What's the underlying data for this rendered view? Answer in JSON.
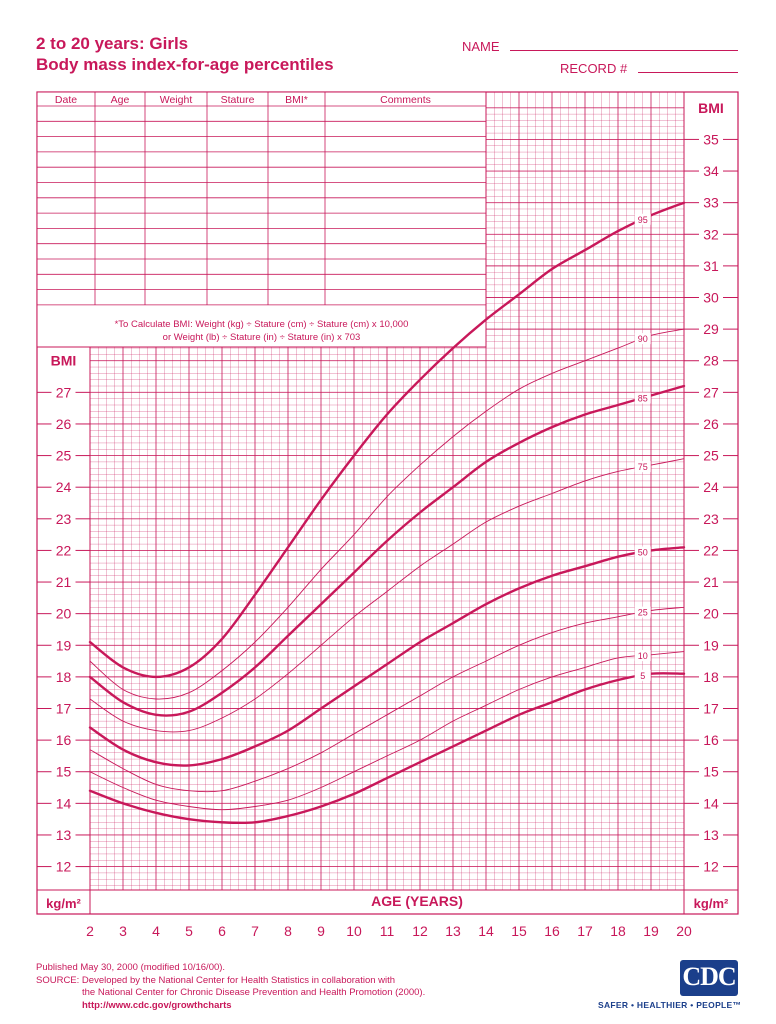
{
  "header": {
    "title_line1": "2 to 20 years: Girls",
    "title_line2": "Body mass index-for-age percentiles",
    "name_label": "NAME",
    "record_label": "RECORD #"
  },
  "table": {
    "columns": [
      "Date",
      "Age",
      "Weight",
      "Stature",
      "BMI*",
      "Comments"
    ],
    "formula_line1": "*To Calculate BMI: Weight (kg) ÷ Stature (cm) ÷ Stature (cm) x 10,000",
    "formula_line2": "or Weight (lb) ÷ Stature (in) ÷ Stature (in) x 703"
  },
  "chart_data": {
    "type": "line",
    "xlabel": "AGE (YEARS)",
    "ylabel_top": "BMI",
    "unit_label": "kg/m²",
    "x_ticks": [
      2,
      3,
      4,
      5,
      6,
      7,
      8,
      9,
      10,
      11,
      12,
      13,
      14,
      15,
      16,
      17,
      18,
      19,
      20
    ],
    "left_y_ticks": [
      12,
      13,
      14,
      15,
      16,
      17,
      18,
      19,
      20,
      21,
      22,
      23,
      24,
      25,
      26,
      27
    ],
    "right_y_ticks": [
      12,
      13,
      14,
      15,
      16,
      17,
      18,
      19,
      20,
      21,
      22,
      23,
      24,
      25,
      26,
      27,
      28,
      29,
      30,
      31,
      32,
      33,
      34,
      35
    ],
    "xlim": [
      2,
      20
    ],
    "ylim": [
      10.5,
      36.5
    ],
    "x": [
      2,
      3,
      4,
      5,
      6,
      7,
      8,
      9,
      10,
      11,
      12,
      13,
      14,
      15,
      16,
      17,
      18,
      19,
      20
    ],
    "series": [
      {
        "name": "95",
        "bold": true,
        "values": [
          19.1,
          18.3,
          18.0,
          18.3,
          19.2,
          20.6,
          22.1,
          23.6,
          25.0,
          26.3,
          27.4,
          28.4,
          29.3,
          30.1,
          30.9,
          31.5,
          32.1,
          32.6,
          33.0
        ]
      },
      {
        "name": "90",
        "bold": false,
        "values": [
          18.5,
          17.6,
          17.3,
          17.5,
          18.2,
          19.1,
          20.2,
          21.4,
          22.5,
          23.7,
          24.7,
          25.6,
          26.4,
          27.1,
          27.6,
          28.0,
          28.4,
          28.8,
          29.0
        ]
      },
      {
        "name": "85",
        "bold": true,
        "values": [
          18.0,
          17.2,
          16.8,
          16.9,
          17.5,
          18.3,
          19.3,
          20.3,
          21.3,
          22.3,
          23.2,
          24.0,
          24.8,
          25.4,
          25.9,
          26.3,
          26.6,
          26.9,
          27.2
        ]
      },
      {
        "name": "75",
        "bold": false,
        "values": [
          17.3,
          16.6,
          16.3,
          16.3,
          16.7,
          17.3,
          18.1,
          19.0,
          19.9,
          20.7,
          21.5,
          22.2,
          22.9,
          23.4,
          23.8,
          24.2,
          24.5,
          24.7,
          24.9
        ]
      },
      {
        "name": "50",
        "bold": true,
        "values": [
          16.4,
          15.7,
          15.3,
          15.2,
          15.4,
          15.8,
          16.3,
          17.0,
          17.7,
          18.4,
          19.1,
          19.7,
          20.3,
          20.8,
          21.2,
          21.5,
          21.8,
          22.0,
          22.1
        ]
      },
      {
        "name": "25",
        "bold": false,
        "values": [
          15.7,
          15.1,
          14.6,
          14.4,
          14.4,
          14.7,
          15.1,
          15.6,
          16.2,
          16.8,
          17.4,
          18.0,
          18.5,
          19.0,
          19.4,
          19.7,
          19.9,
          20.1,
          20.2
        ]
      },
      {
        "name": "10",
        "bold": false,
        "values": [
          15.0,
          14.5,
          14.1,
          13.9,
          13.8,
          13.9,
          14.1,
          14.5,
          15.0,
          15.5,
          16.0,
          16.6,
          17.1,
          17.6,
          18.0,
          18.3,
          18.6,
          18.7,
          18.8
        ]
      },
      {
        "name": "5",
        "bold": true,
        "values": [
          14.4,
          14.0,
          13.7,
          13.5,
          13.4,
          13.4,
          13.6,
          13.9,
          14.3,
          14.8,
          15.3,
          15.8,
          16.3,
          16.8,
          17.2,
          17.6,
          17.9,
          18.1,
          18.1
        ]
      }
    ],
    "grid": true
  },
  "footer": {
    "line1": "Published May 30, 2000 (modified 10/16/00).",
    "line2": "SOURCE: Developed by the National Center for Health Statistics in collaboration with",
    "line3": "the National Center for Chronic Disease Prevention and Health Promotion (2000).",
    "line4": "http://www.cdc.gov/growthcharts"
  },
  "logo": {
    "text": "CDC",
    "tagline": "SAFER • HEALTHIER • PEOPLE™"
  },
  "colors": {
    "accent": "#c8185a",
    "cdc_blue": "#1b3f8b"
  }
}
